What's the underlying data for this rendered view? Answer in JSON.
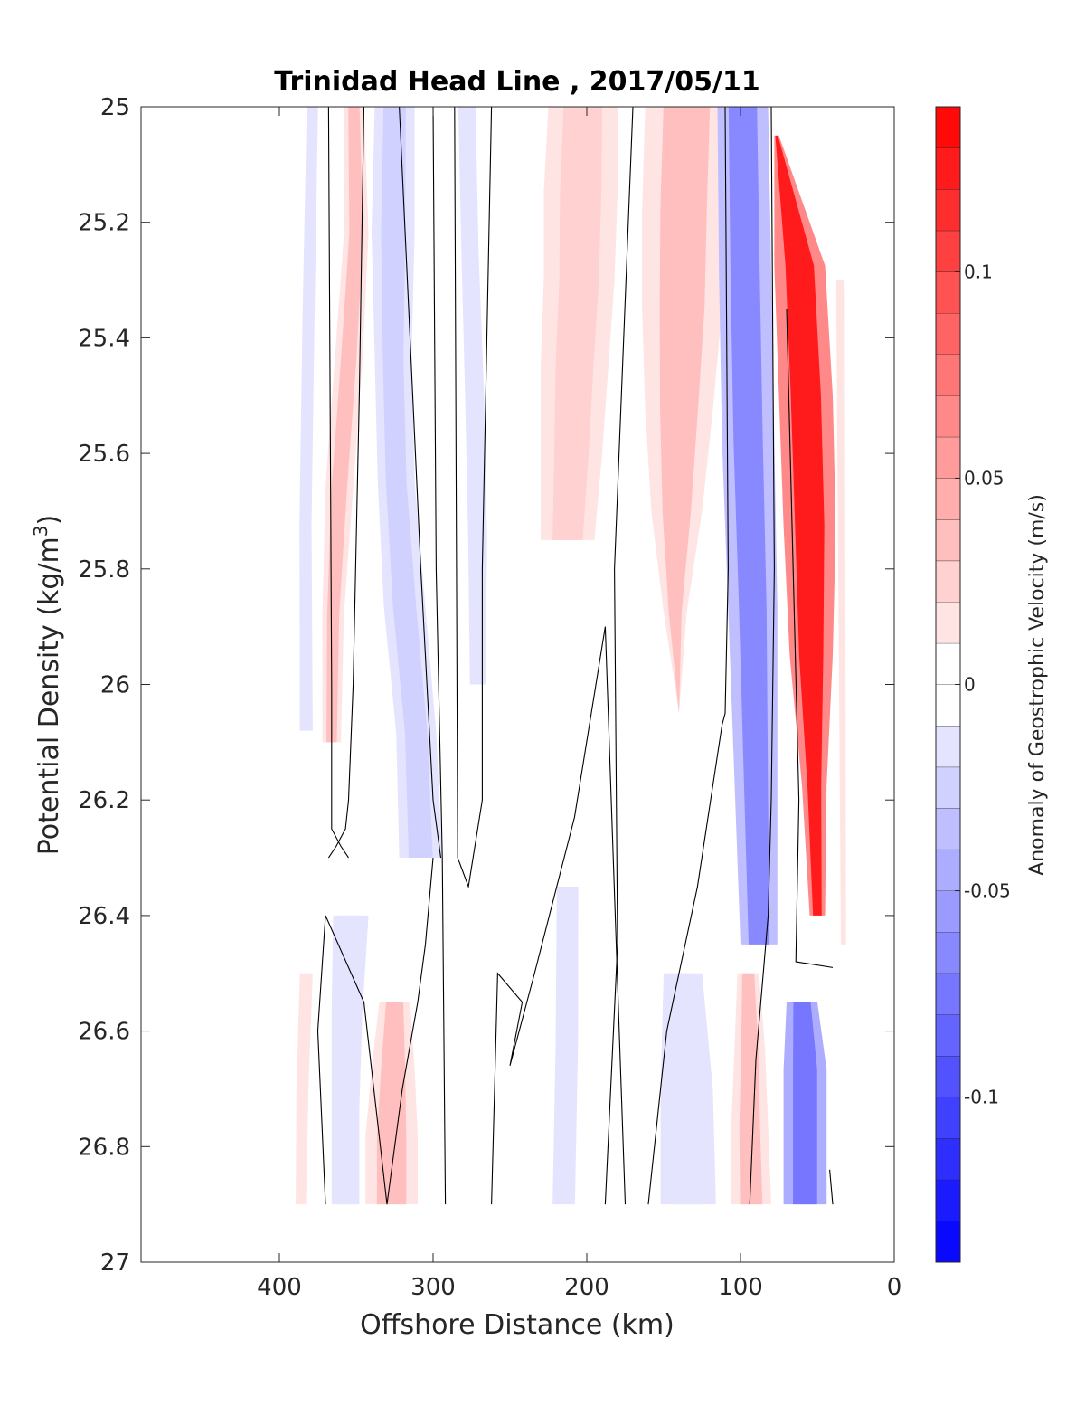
{
  "chart_data": {
    "type": "heatmap",
    "title": "Trinidad Head Line , 2017/05/11",
    "xlabel": "Offshore Distance (km)",
    "ylabel": "Potential Density (kg/m",
    "ylabel_sup": "3",
    "ylabel_close": ")",
    "xlim": [
      490,
      0
    ],
    "ylim": [
      25,
      27
    ],
    "x_reversed": true,
    "y_reversed": true,
    "xticks": [
      400,
      300,
      200,
      100,
      0
    ],
    "xtick_labels": [
      "400",
      "300",
      "200",
      "100",
      "0"
    ],
    "yticks": [
      25,
      25.2,
      25.4,
      25.6,
      25.8,
      26,
      26.2,
      26.4,
      26.6,
      26.8,
      27
    ],
    "ytick_labels": [
      "25",
      "25.2",
      "25.4",
      "25.6",
      "25.8",
      "26",
      "26.2",
      "26.4",
      "26.6",
      "26.8",
      "27"
    ],
    "grid": false,
    "colorbar": {
      "label": "Anomaly of Geostrophic Velocity (m/s)",
      "clim": [
        -0.14,
        0.14
      ],
      "levels": 28,
      "ticks": [
        0.1,
        0.05,
        0,
        -0.05,
        -0.1
      ],
      "tick_labels": [
        "0.1",
        "0.05",
        "0",
        "-0.05",
        "-0.1"
      ],
      "positive_color": "#ff0000",
      "negative_color": "#0000ff",
      "zero_color": "#ffffff"
    },
    "data_extent": {
      "x": [
        390,
        30
      ],
      "y": [
        25,
        26.9
      ]
    },
    "bands": [
      {
        "xs": [
          [
            385,
            372
          ],
          [
            388,
            374
          ],
          [
            390,
            376
          ],
          [
            390,
            375
          ]
        ],
        "y": [
          25,
          26.08
        ],
        "value": -0.015
      },
      {
        "xs": [
          [
            358,
            345
          ],
          [
            358,
            342
          ],
          [
            364,
            346
          ],
          [
            370,
            352
          ],
          [
            372,
            358
          ],
          [
            372,
            360
          ]
        ],
        "y": [
          25,
          26.1
        ],
        "value": 0.03
      },
      {
        "xs": [
          [
            338,
            312
          ],
          [
            340,
            312
          ],
          [
            338,
            314
          ],
          [
            336,
            312
          ],
          [
            332,
            305
          ],
          [
            324,
            298
          ],
          [
            322,
            294
          ]
        ],
        "y": [
          25,
          26.3
        ],
        "value": -0.03
      },
      {
        "xs": [
          [
            288,
            268
          ],
          [
            286,
            266
          ],
          [
            284,
            262
          ],
          [
            282,
            260
          ],
          [
            280,
            262
          ]
        ],
        "y": [
          25,
          26.0
        ],
        "value": -0.012
      },
      {
        "xs": [
          [
            225,
            180
          ],
          [
            228,
            180
          ],
          [
            228,
            182
          ],
          [
            230,
            186
          ],
          [
            230,
            190
          ],
          [
            230,
            195
          ]
        ],
        "y": [
          25,
          25.75
        ],
        "value": 0.025
      },
      {
        "xs": [
          [
            162,
            108
          ],
          [
            164,
            110
          ],
          [
            164,
            112
          ],
          [
            162,
            118
          ],
          [
            158,
            125
          ],
          [
            150,
            135
          ],
          [
            140,
            140
          ]
        ],
        "y": [
          25,
          26.05
        ],
        "value": 0.03
      },
      {
        "xs": [
          [
            115,
            82
          ],
          [
            114,
            80
          ],
          [
            112,
            78
          ],
          [
            108,
            76
          ],
          [
            104,
            76
          ],
          [
            100,
            76
          ]
        ],
        "y": [
          25,
          26.45
        ],
        "value": -0.07
      },
      {
        "xs": [
          [
            78,
            75
          ],
          [
            78,
            45
          ],
          [
            75,
            40
          ],
          [
            72,
            38
          ],
          [
            68,
            40
          ],
          [
            60,
            44
          ],
          [
            55,
            45
          ]
        ],
        "y": [
          25.05,
          26.4
        ],
        "value": 0.12
      },
      {
        "xs": [
          [
            40,
            30
          ],
          [
            38,
            30
          ],
          [
            36,
            30
          ]
        ],
        "y": [
          25.3,
          26.45
        ],
        "value": 0.015
      },
      {
        "xs": [
          [
            390,
            375
          ],
          [
            392,
            378
          ],
          [
            392,
            380
          ]
        ],
        "y": [
          26.5,
          26.9
        ],
        "value": 0.015
      },
      {
        "xs": [
          [
            365,
            342
          ],
          [
            366,
            346
          ],
          [
            366,
            348
          ],
          [
            366,
            348
          ]
        ],
        "y": [
          26.4,
          26.9
        ],
        "value": -0.02
      },
      {
        "xs": [
          [
            335,
            315
          ],
          [
            340,
            312
          ],
          [
            344,
            310
          ],
          [
            344,
            310
          ]
        ],
        "y": [
          26.55,
          26.9
        ],
        "value": 0.035
      },
      {
        "xs": [
          [
            225,
            200
          ],
          [
            226,
            200
          ],
          [
            228,
            202
          ]
        ],
        "y": [
          26.35,
          26.9
        ],
        "value": -0.012
      },
      {
        "xs": [
          [
            150,
            125
          ],
          [
            152,
            118
          ],
          [
            152,
            116
          ]
        ],
        "y": [
          26.5,
          26.9
        ],
        "value": -0.02
      },
      {
        "xs": [
          [
            102,
            88
          ],
          [
            104,
            84
          ],
          [
            106,
            82
          ],
          [
            106,
            80
          ]
        ],
        "y": [
          26.5,
          26.9
        ],
        "value": 0.035
      },
      {
        "xs": [
          [
            70,
            50
          ],
          [
            72,
            44
          ],
          [
            72,
            44
          ],
          [
            72,
            44
          ]
        ],
        "y": [
          26.55,
          26.9
        ],
        "value": -0.08
      }
    ],
    "zero_contours": [
      {
        "x": [
          368,
          367,
          366,
          366,
          366,
          360,
          355
        ],
        "y": [
          25,
          25.5,
          26.0,
          26.2,
          26.25,
          26.28,
          26.3
        ]
      },
      {
        "x": [
          345,
          348,
          352,
          355,
          357,
          363,
          368
        ],
        "y": [
          25,
          25.5,
          26.0,
          26.2,
          26.25,
          26.28,
          26.3
        ]
      },
      {
        "x": [
          300,
          305,
          310,
          320,
          330,
          345,
          370,
          375,
          370
        ],
        "y": [
          26.3,
          26.45,
          26.55,
          26.7,
          26.9,
          26.55,
          26.4,
          26.6,
          26.9
        ]
      },
      {
        "x": [
          322,
          308,
          300,
          295
        ],
        "y": [
          25,
          25.8,
          26.2,
          26.3
        ]
      },
      {
        "x": [
          300,
          298,
          294,
          292
        ],
        "y": [
          25,
          25.8,
          26.3,
          26.9
        ]
      },
      {
        "x": [
          262,
          268,
          268,
          277,
          284,
          286
        ],
        "y": [
          25,
          25.8,
          26.2,
          26.35,
          26.3,
          25
        ]
      },
      {
        "x": [
          262,
          258,
          242,
          250,
          234,
          208,
          188,
          175
        ],
        "y": [
          26.9,
          26.5,
          26.55,
          26.66,
          26.5,
          26.23,
          25.9,
          26.9
        ]
      },
      {
        "x": [
          170,
          182,
          180,
          188
        ],
        "y": [
          25,
          25.8,
          26.45,
          26.9
        ]
      },
      {
        "x": [
          110,
          108,
          110,
          112,
          128,
          148,
          160
        ],
        "y": [
          25,
          25.8,
          26.05,
          26.07,
          26.35,
          26.6,
          26.9
        ]
      },
      {
        "x": [
          80,
          78,
          80,
          82,
          90,
          94
        ],
        "y": [
          25,
          25.8,
          26.2,
          26.4,
          26.65,
          26.9
        ]
      },
      {
        "x": [
          70,
          62,
          64,
          40,
          40
        ],
        "y": [
          25.35,
          26.2,
          26.48,
          26.49,
          26.49
        ]
      },
      {
        "x": [
          40,
          42
        ],
        "y": [
          26.9,
          26.84
        ]
      }
    ]
  }
}
